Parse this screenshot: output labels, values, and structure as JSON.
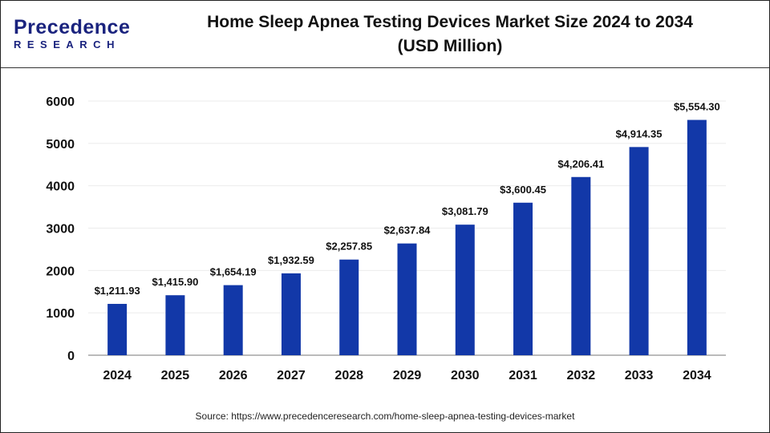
{
  "logo": {
    "text_main": "Precedence",
    "text_sub": "RESEARCH"
  },
  "chart_data": {
    "type": "bar",
    "title": "Home Sleep Apnea Testing Devices Market Size 2024 to 2034",
    "subtitle": "(USD Million)",
    "categories": [
      "2024",
      "2025",
      "2026",
      "2027",
      "2028",
      "2029",
      "2030",
      "2031",
      "2032",
      "2033",
      "2034"
    ],
    "values": [
      1211.93,
      1415.9,
      1654.19,
      1932.59,
      2257.85,
      2637.84,
      3081.79,
      3600.45,
      4206.41,
      4914.35,
      5554.3
    ],
    "data_labels": [
      "$1,211.93",
      "$1,415.90",
      "$1,654.19",
      "$1,932.59",
      "$2,257.85",
      "$2,637.84",
      "$3,081.79",
      "$3,600.45",
      "$4,206.41",
      "$4,914.35",
      "$5,554.30"
    ],
    "yticks": [
      0,
      1000,
      2000,
      3000,
      4000,
      5000,
      6000
    ],
    "ylim": [
      0,
      6000
    ],
    "xlabel": "",
    "ylabel": "",
    "grid": true,
    "bar_color": "#1238a8"
  },
  "source": "Source: https://www.precedenceresearch.com/home-sleep-apnea-testing-devices-market"
}
